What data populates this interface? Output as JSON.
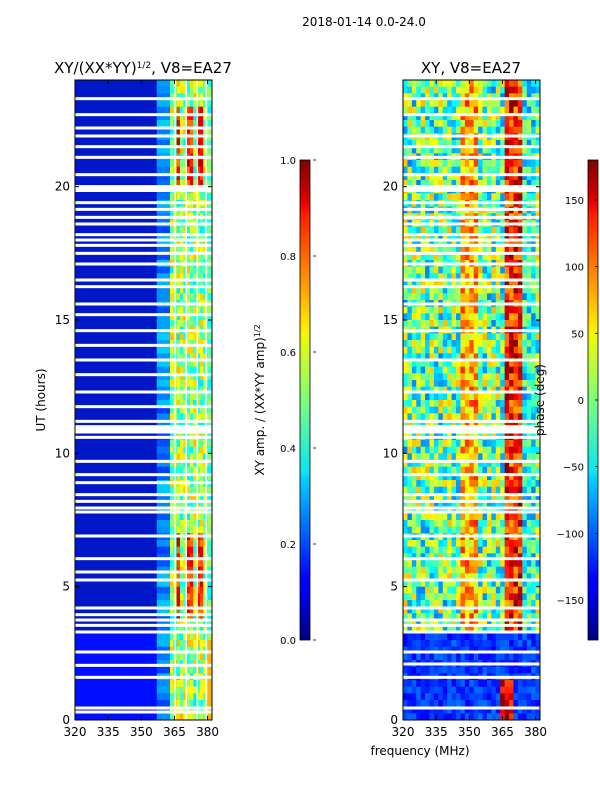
{
  "suptitle": "2018-01-14 0.0-24.0",
  "chart_data": [
    {
      "type": "heatmap",
      "title": "XY/(XX*YY)^{1/2}, V8=EA27",
      "title_parts": {
        "main": "XY/(XX*YY)",
        "sup": "1/2",
        "tail": ", V8=EA27"
      },
      "xlabel": "",
      "ylabel": "UT (hours)",
      "xlim": [
        320,
        382
      ],
      "ylim": [
        0,
        24
      ],
      "xticks": [
        320,
        335,
        350,
        365,
        380
      ],
      "yticks": [
        0,
        5,
        10,
        15,
        20
      ],
      "colorbar": {
        "label": "XY amp. / (XX*YY amp)^{1/2}",
        "label_parts": {
          "main": "XY amp. / (XX*YY amp)",
          "sup": "1/2"
        },
        "range": [
          0.0,
          1.0
        ],
        "ticks": [
          "0.0",
          "0.2",
          "0.4",
          "0.6",
          "0.8",
          "1.0"
        ],
        "colormap": "jet"
      },
      "flagged_hours": [
        0.3,
        0.45,
        1.6,
        2.05,
        2.55,
        3.3,
        3.55,
        3.75,
        3.95,
        4.2,
        5.25,
        5.55,
        6.05,
        6.9,
        7.8,
        7.95,
        8.2,
        8.45,
        8.9,
        9.2,
        9.7,
        10.6,
        10.8,
        11.0,
        11.2,
        11.75,
        12.3,
        12.95,
        13.5,
        14.05,
        14.6,
        15.2,
        15.6,
        16.25,
        16.5,
        17.1,
        17.5,
        17.8,
        18.0,
        18.2,
        18.6,
        18.85,
        19.15,
        19.4,
        19.9,
        20.0,
        20.45,
        21.1,
        21.5,
        21.9,
        22.2,
        22.7,
        23.3
      ],
      "high_amp_channels_mhz": [
        366,
        371,
        376
      ],
      "mean_amplitude_by_band": [
        {
          "mhz_from": 320,
          "mhz_to": 357,
          "value": 0.08
        },
        {
          "mhz_from": 357,
          "mhz_to": 363,
          "value": 0.25
        },
        {
          "mhz_from": 363,
          "mhz_to": 380,
          "value": 0.55
        },
        {
          "mhz_from": 380,
          "mhz_to": 382,
          "value": 0.45
        }
      ]
    },
    {
      "type": "heatmap",
      "title": "XY, V8=EA27",
      "xlabel": "frequency (MHz)",
      "ylabel": "",
      "xlim": [
        320,
        382
      ],
      "ylim": [
        0,
        24
      ],
      "xticks": [
        320,
        335,
        350,
        365,
        380
      ],
      "yticks": [
        0,
        5,
        10,
        15,
        20
      ],
      "colorbar": {
        "label": "phase (deg)",
        "range": [
          -180,
          180
        ],
        "ticks": [
          "−150",
          "−100",
          "−50",
          "0",
          "50",
          "100",
          "150"
        ],
        "tick_values": [
          -150,
          -100,
          -50,
          0,
          50,
          100,
          150
        ],
        "colormap": "jet"
      },
      "flagged_hours": [
        0.45,
        1.6,
        2.1,
        2.55,
        3.3,
        3.55,
        3.75,
        4.2,
        5.25,
        6.05,
        6.9,
        7.8,
        7.95,
        8.2,
        8.45,
        9.2,
        9.7,
        10.6,
        10.8,
        11.0,
        11.2,
        12.3,
        13.5,
        14.6,
        15.6,
        16.25,
        16.5,
        17.1,
        17.5,
        17.8,
        18.0,
        18.2,
        18.6,
        18.85,
        19.15,
        19.4,
        19.9,
        20.0,
        20.45,
        21.1,
        21.5,
        21.9,
        22.7,
        23.3
      ]
    }
  ]
}
